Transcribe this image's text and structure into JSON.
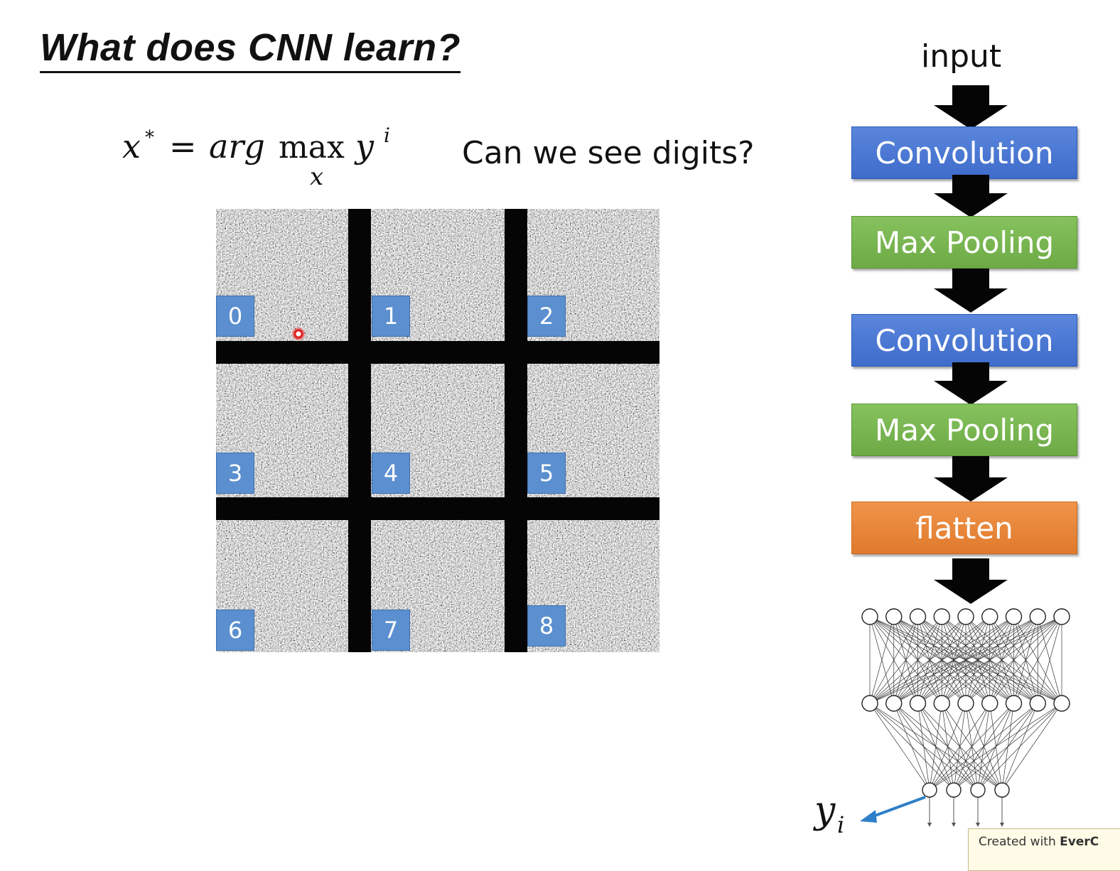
{
  "slide": {
    "title": "What does CNN learn?",
    "formula": "x* = arg max_x y^i",
    "formula_parts": {
      "lhs": "x",
      "sup": "*",
      "eq": "=",
      "arg": "arg",
      "max": "max",
      "sub": "x",
      "y": "y",
      "ysup": "i"
    },
    "question": "Can we see digits?"
  },
  "digit_grid": {
    "labels": [
      "0",
      "1",
      "2",
      "3",
      "4",
      "5",
      "6",
      "7",
      "8"
    ]
  },
  "architecture": {
    "input_label": "input",
    "layers": [
      {
        "label": "Convolution",
        "color": "#4a78d4"
      },
      {
        "label": "Max Pooling",
        "color": "#79b650"
      },
      {
        "label": "Convolution",
        "color": "#4a78d4"
      },
      {
        "label": "Max Pooling",
        "color": "#79b650"
      },
      {
        "label": "flatten",
        "color": "#e8873a"
      }
    ],
    "network": {
      "layer_sizes": [
        9,
        9,
        4
      ],
      "output_label": "y",
      "output_sub": "i"
    }
  },
  "footer": {
    "created_with": "Created with",
    "brand": "EverC"
  }
}
